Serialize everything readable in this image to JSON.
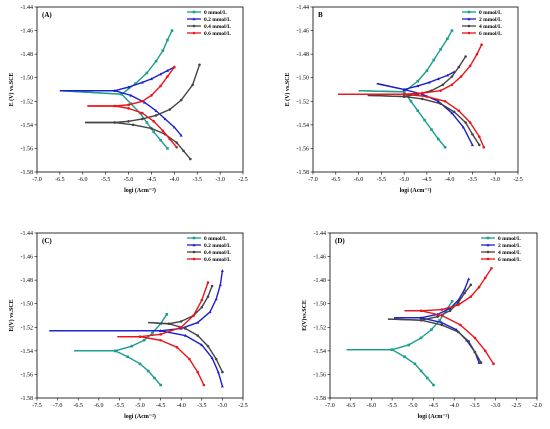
{
  "chart_data": [
    {
      "type": "line",
      "panel_label": "(A)",
      "xlabel": "logi (Acm⁻²)",
      "ylabel": "E (V) vs.SCE",
      "xlim": [
        -7.0,
        -2.5
      ],
      "ylim": [
        -1.58,
        -1.44
      ],
      "xticks": [
        "-7.0",
        "-6.5",
        "-6.0",
        "-5.5",
        "-5.0",
        "-4.5",
        "-4.0",
        "-3.5",
        "-3.0",
        "-2.5"
      ],
      "yticks": [
        "-1.44",
        "-1.46",
        "-1.48",
        "-1.50",
        "-1.52",
        "-1.54",
        "-1.56",
        "-1.58"
      ],
      "legend_position": "top-right",
      "series": [
        {
          "name": "0 mmol/L",
          "color": "#1a9e8f",
          "marker": "square",
          "x": [
            -5.15,
            -4.85,
            -4.6,
            -4.4,
            -4.25,
            -4.15,
            -4.05
          ],
          "y": [
            -1.514,
            -1.505,
            -1.496,
            -1.486,
            -1.477,
            -1.468,
            -1.46
          ],
          "x2": [
            -5.15,
            -4.95,
            -4.75,
            -4.6,
            -4.45,
            -4.3,
            -4.15
          ],
          "y2": [
            -1.514,
            -1.522,
            -1.53,
            -1.538,
            -1.546,
            -1.553,
            -1.56
          ],
          "corr": [
            -6.5,
            -1.511
          ]
        },
        {
          "name": "0.2 mmol/L",
          "color": "#1e1ecc",
          "marker": "triangle",
          "x": [
            -5.3,
            -5.0,
            -4.7,
            -4.5,
            -4.3,
            -4.15,
            -4.0
          ],
          "y": [
            -1.511,
            -1.508,
            -1.504,
            -1.501,
            -1.497,
            -1.494,
            -1.491
          ],
          "x2": [
            -5.3,
            -4.95,
            -4.65,
            -4.4,
            -4.2,
            -4.0,
            -3.85
          ],
          "y2": [
            -1.511,
            -1.515,
            -1.521,
            -1.528,
            -1.535,
            -1.542,
            -1.549
          ],
          "corr": [
            -6.5,
            -1.511
          ]
        },
        {
          "name": "0.4 mmol/L",
          "color": "#444444",
          "marker": "circle",
          "x": [
            -5.3,
            -5.0,
            -4.7,
            -4.4,
            -4.1,
            -3.85,
            -3.6,
            -3.45
          ],
          "y": [
            -1.538,
            -1.537,
            -1.535,
            -1.532,
            -1.527,
            -1.519,
            -1.506,
            -1.489
          ],
          "x2": [
            -5.3,
            -4.9,
            -4.5,
            -4.2,
            -3.95,
            -3.8,
            -3.65
          ],
          "y2": [
            -1.538,
            -1.54,
            -1.543,
            -1.548,
            -1.555,
            -1.562,
            -1.569
          ],
          "corr": [
            -5.95,
            -1.538
          ]
        },
        {
          "name": "0.6 mmol/L",
          "color": "#e8151b",
          "marker": "circle",
          "x": [
            -5.3,
            -5.0,
            -4.7,
            -4.5,
            -4.3,
            -4.15,
            -4.0
          ],
          "y": [
            -1.524,
            -1.523,
            -1.52,
            -1.515,
            -1.507,
            -1.499,
            -1.491
          ],
          "x2": [
            -5.3,
            -5.0,
            -4.7,
            -4.45,
            -4.25,
            -4.1,
            -3.95
          ],
          "y2": [
            -1.524,
            -1.526,
            -1.53,
            -1.537,
            -1.545,
            -1.552,
            -1.559
          ],
          "corr": [
            -5.9,
            -1.524
          ]
        }
      ]
    },
    {
      "type": "line",
      "panel_label": "B",
      "xlabel": "logi (Acm⁻²)",
      "ylabel": "E (V) vs.SCE",
      "xlim": [
        -7.0,
        -2.5
      ],
      "ylim": [
        -1.58,
        -1.44
      ],
      "xticks": [
        "-7.0",
        "-6.5",
        "-6.0",
        "-5.5",
        "-5.0",
        "-4.5",
        "-4.0",
        "-3.5",
        "-3.0",
        "-2.5"
      ],
      "yticks": [
        "-1.44",
        "-1.46",
        "-1.48",
        "-1.50",
        "-1.52",
        "-1.54",
        "-1.56",
        "-1.58"
      ],
      "legend_position": "top-right",
      "series": [
        {
          "name": "0 mmol/L",
          "color": "#1a9e8f",
          "marker": "square",
          "x": [
            -5.0,
            -4.7,
            -4.5,
            -4.35,
            -4.2,
            -4.05,
            -3.95
          ],
          "y": [
            -1.512,
            -1.503,
            -1.494,
            -1.485,
            -1.476,
            -1.467,
            -1.46
          ],
          "x2": [
            -5.0,
            -4.85,
            -4.7,
            -4.55,
            -4.4,
            -4.25,
            -4.1
          ],
          "y2": [
            -1.512,
            -1.52,
            -1.528,
            -1.536,
            -1.544,
            -1.552,
            -1.559
          ],
          "corr": [
            -6.0,
            -1.511
          ]
        },
        {
          "name": "2 mmol/L",
          "color": "#1e1ecc",
          "marker": "triangle",
          "x": [
            -5.0,
            -4.7,
            -4.45,
            -4.25,
            -4.05,
            -3.9
          ],
          "y": [
            -1.51,
            -1.507,
            -1.504,
            -1.501,
            -1.498,
            -1.495
          ],
          "x2": [
            -5.0,
            -4.6,
            -4.25,
            -3.95,
            -3.7,
            -3.5
          ],
          "y2": [
            -1.51,
            -1.514,
            -1.52,
            -1.53,
            -1.542,
            -1.557
          ],
          "corr": [
            -5.6,
            -1.505
          ]
        },
        {
          "name": "4 mmol/L",
          "color": "#444444",
          "marker": "circle",
          "x": [
            -5.0,
            -4.7,
            -4.4,
            -4.15,
            -3.95,
            -3.8,
            -3.65
          ],
          "y": [
            -1.516,
            -1.514,
            -1.511,
            -1.506,
            -1.499,
            -1.491,
            -1.482
          ],
          "x2": [
            -5.0,
            -4.6,
            -4.2,
            -3.9,
            -3.65,
            -3.5,
            -3.35
          ],
          "y2": [
            -1.516,
            -1.518,
            -1.522,
            -1.529,
            -1.538,
            -1.548,
            -1.557
          ],
          "corr": [
            -5.8,
            -1.515
          ]
        },
        {
          "name": "6 mmol/L",
          "color": "#e8151b",
          "marker": "circle",
          "x": [
            -5.0,
            -4.6,
            -4.2,
            -3.95,
            -3.75,
            -3.55,
            -3.4,
            -3.3
          ],
          "y": [
            -1.514,
            -1.513,
            -1.511,
            -1.506,
            -1.499,
            -1.49,
            -1.48,
            -1.472
          ],
          "x2": [
            -5.0,
            -4.5,
            -4.1,
            -3.8,
            -3.55,
            -3.35,
            -3.25
          ],
          "y2": [
            -1.514,
            -1.516,
            -1.52,
            -1.528,
            -1.538,
            -1.55,
            -1.559
          ],
          "corr": [
            -6.45,
            -1.514
          ]
        }
      ]
    },
    {
      "type": "line",
      "panel_label": "(C)",
      "xlabel": "logi (Acm⁻²)",
      "ylabel": "E(V) vs.SCE",
      "xlim": [
        -7.5,
        -2.5
      ],
      "ylim": [
        -1.58,
        -1.44
      ],
      "xticks": [
        "-7.5",
        "-7.0",
        "-6.5",
        "-6.0",
        "-5.5",
        "-5.0",
        "-4.5",
        "-4.0",
        "-3.5",
        "-3.0",
        "-2.5"
      ],
      "yticks": [
        "-1.44",
        "-1.46",
        "-1.48",
        "-1.50",
        "-1.52",
        "-1.54",
        "-1.56",
        "-1.58"
      ],
      "legend_position": "top-right",
      "series": [
        {
          "name": "0 mmol/L",
          "color": "#1a9e8f",
          "marker": "square",
          "x": [
            -5.6,
            -5.2,
            -4.9,
            -4.7,
            -4.5,
            -4.35
          ],
          "y": [
            -1.54,
            -1.536,
            -1.531,
            -1.525,
            -1.517,
            -1.509
          ],
          "x2": [
            -5.6,
            -5.3,
            -5.0,
            -4.8,
            -4.65,
            -4.5
          ],
          "y2": [
            -1.54,
            -1.545,
            -1.551,
            -1.557,
            -1.563,
            -1.569
          ],
          "corr": [
            -6.6,
            -1.54
          ]
        },
        {
          "name": "0.2 mmol/L",
          "color": "#1e1ecc",
          "marker": "triangle",
          "x": [
            -4.5,
            -4.0,
            -3.6,
            -3.3,
            -3.15,
            -3.05,
            -3.0
          ],
          "y": [
            -1.523,
            -1.521,
            -1.516,
            -1.507,
            -1.496,
            -1.484,
            -1.472
          ],
          "x2": [
            -4.5,
            -3.9,
            -3.5,
            -3.25,
            -3.1,
            -3.0
          ],
          "y2": [
            -1.523,
            -1.527,
            -1.535,
            -1.546,
            -1.558,
            -1.57
          ],
          "corr": [
            -7.2,
            -1.523
          ]
        },
        {
          "name": "0.4 mmol/L",
          "color": "#444444",
          "marker": "circle",
          "x": [
            -4.3,
            -4.0,
            -3.7,
            -3.5,
            -3.35,
            -3.25
          ],
          "y": [
            -1.517,
            -1.515,
            -1.51,
            -1.503,
            -1.494,
            -1.485
          ],
          "x2": [
            -4.3,
            -3.9,
            -3.6,
            -3.35,
            -3.15,
            -3.0
          ],
          "y2": [
            -1.517,
            -1.521,
            -1.527,
            -1.536,
            -1.547,
            -1.558
          ],
          "corr": [
            -4.8,
            -1.516
          ]
        },
        {
          "name": "0.6 mmol/L",
          "color": "#e8151b",
          "marker": "circle",
          "x": [
            -5.0,
            -4.5,
            -4.0,
            -3.7,
            -3.5,
            -3.35
          ],
          "y": [
            -1.528,
            -1.526,
            -1.52,
            -1.51,
            -1.497,
            -1.482
          ],
          "x2": [
            -5.0,
            -4.5,
            -4.1,
            -3.8,
            -3.6,
            -3.45
          ],
          "y2": [
            -1.528,
            -1.531,
            -1.537,
            -1.547,
            -1.558,
            -1.569
          ],
          "corr": [
            -5.55,
            -1.528
          ]
        }
      ]
    },
    {
      "type": "line",
      "panel_label": "(D)",
      "xlabel": "logi (Acm⁻²)",
      "ylabel": "E(V)vs.SCE",
      "xlim": [
        -7.0,
        -2.0
      ],
      "ylim": [
        -1.58,
        -1.44
      ],
      "xticks": [
        "-7.0",
        "-6.5",
        "-6.0",
        "-5.5",
        "-5.0",
        "-4.5",
        "-4.0",
        "-3.5",
        "-3.0",
        "-2.5",
        "-2.0"
      ],
      "yticks": [
        "-1.44",
        "-1.46",
        "-1.48",
        "-1.50",
        "-1.52",
        "-1.54",
        "-1.56",
        "-1.58"
      ],
      "legend_position": "top-right",
      "series": [
        {
          "name": "0 mmol/L",
          "color": "#1a9e8f",
          "marker": "square",
          "x": [
            -5.5,
            -5.1,
            -4.8,
            -4.55,
            -4.35,
            -4.2,
            -4.05
          ],
          "y": [
            -1.539,
            -1.535,
            -1.529,
            -1.522,
            -1.514,
            -1.506,
            -1.498
          ],
          "x2": [
            -5.5,
            -5.2,
            -4.95,
            -4.8,
            -4.65,
            -4.5
          ],
          "y2": [
            -1.539,
            -1.545,
            -1.551,
            -1.557,
            -1.563,
            -1.569
          ],
          "corr": [
            -6.6,
            -1.539
          ]
        },
        {
          "name": "2 mmol/L",
          "color": "#1e1ecc",
          "marker": "triangle",
          "x": [
            -4.8,
            -4.4,
            -4.1,
            -3.9,
            -3.75,
            -3.65
          ],
          "y": [
            -1.512,
            -1.509,
            -1.504,
            -1.497,
            -1.488,
            -1.479
          ],
          "x2": [
            -4.8,
            -4.3,
            -3.95,
            -3.7,
            -3.5,
            -3.4
          ],
          "y2": [
            -1.512,
            -1.516,
            -1.522,
            -1.531,
            -1.541,
            -1.55
          ],
          "corr": [
            -5.45,
            -1.512
          ]
        },
        {
          "name": "4 mmol/L",
          "color": "#444444",
          "marker": "circle",
          "x": [
            -4.8,
            -4.4,
            -4.1,
            -3.9,
            -3.75,
            -3.6
          ],
          "y": [
            -1.514,
            -1.511,
            -1.506,
            -1.499,
            -1.491,
            -1.484
          ],
          "x2": [
            -4.8,
            -4.3,
            -3.9,
            -3.65,
            -3.5,
            -3.35
          ],
          "y2": [
            -1.514,
            -1.518,
            -1.524,
            -1.532,
            -1.541,
            -1.55
          ],
          "corr": [
            -5.6,
            -1.513
          ]
        },
        {
          "name": "6 mmol/L",
          "color": "#e8151b",
          "marker": "circle",
          "x": [
            -4.8,
            -4.3,
            -3.9,
            -3.6,
            -3.4,
            -3.25,
            -3.1
          ],
          "y": [
            -1.506,
            -1.505,
            -1.501,
            -1.494,
            -1.486,
            -1.478,
            -1.47
          ],
          "x2": [
            -4.8,
            -4.3,
            -3.85,
            -3.5,
            -3.25,
            -3.05
          ],
          "y2": [
            -1.506,
            -1.51,
            -1.518,
            -1.529,
            -1.54,
            -1.551
          ],
          "corr": [
            -5.2,
            -1.506
          ]
        }
      ]
    }
  ]
}
